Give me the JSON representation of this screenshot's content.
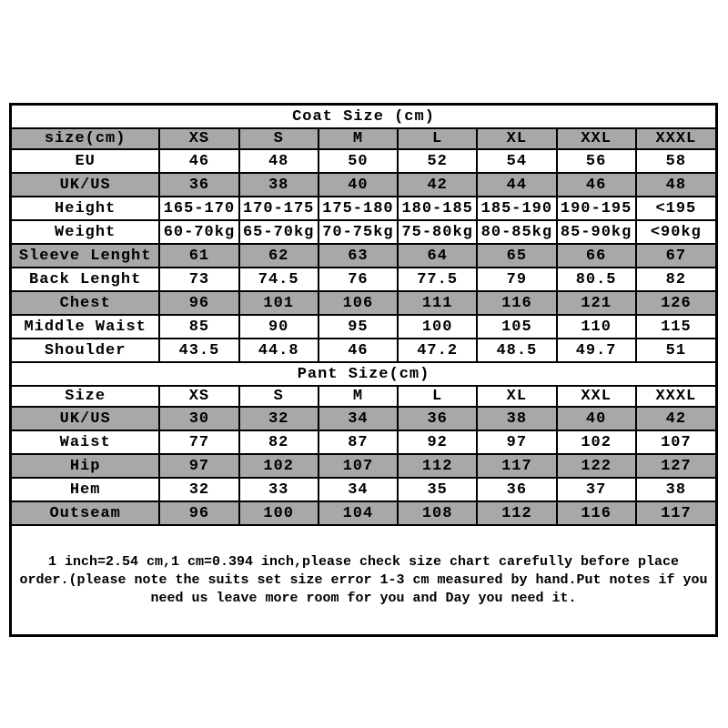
{
  "colors": {
    "shaded_row_bg": "#a8a8a8",
    "border": "#000000",
    "text": "#000000",
    "page_bg": "#ffffff"
  },
  "coat_table": {
    "title": "Coat Size (cm)",
    "header": [
      "size(cm)",
      "XS",
      "S",
      "M",
      "L",
      "XL",
      "XXL",
      "XXXL"
    ],
    "header_shaded": true,
    "rows": [
      {
        "label": "EU",
        "shaded": false,
        "values": [
          "46",
          "48",
          "50",
          "52",
          "54",
          "56",
          "58"
        ]
      },
      {
        "label": "UK/US",
        "shaded": true,
        "values": [
          "36",
          "38",
          "40",
          "42",
          "44",
          "46",
          "48"
        ]
      },
      {
        "label": "Height",
        "shaded": false,
        "values": [
          "165-170",
          "170-175",
          "175-180",
          "180-185",
          "185-190",
          "190-195",
          "<195"
        ]
      },
      {
        "label": "Weight",
        "shaded": false,
        "values": [
          "60-70kg",
          "65-70kg",
          "70-75kg",
          "75-80kg",
          "80-85kg",
          "85-90kg",
          "<90kg"
        ]
      },
      {
        "label": "Sleeve Lenght",
        "shaded": true,
        "values": [
          "61",
          "62",
          "63",
          "64",
          "65",
          "66",
          "67"
        ]
      },
      {
        "label": "Back Lenght",
        "shaded": false,
        "values": [
          "73",
          "74.5",
          "76",
          "77.5",
          "79",
          "80.5",
          "82"
        ]
      },
      {
        "label": "Chest",
        "shaded": true,
        "values": [
          "96",
          "101",
          "106",
          "111",
          "116",
          "121",
          "126"
        ]
      },
      {
        "label": "Middle Waist",
        "shaded": false,
        "values": [
          "85",
          "90",
          "95",
          "100",
          "105",
          "110",
          "115"
        ]
      },
      {
        "label": "Shoulder",
        "shaded": false,
        "values": [
          "43.5",
          "44.8",
          "46",
          "47.2",
          "48.5",
          "49.7",
          "51"
        ]
      }
    ]
  },
  "pant_table": {
    "title": "Pant Size(cm)",
    "header": [
      "Size",
      "XS",
      "S",
      "M",
      "L",
      "XL",
      "XXL",
      "XXXL"
    ],
    "header_shaded": false,
    "rows": [
      {
        "label": "UK/US",
        "shaded": true,
        "values": [
          "30",
          "32",
          "34",
          "36",
          "38",
          "40",
          "42"
        ]
      },
      {
        "label": "Waist",
        "shaded": false,
        "values": [
          "77",
          "82",
          "87",
          "92",
          "97",
          "102",
          "107"
        ]
      },
      {
        "label": "Hip",
        "shaded": true,
        "values": [
          "97",
          "102",
          "107",
          "112",
          "117",
          "122",
          "127"
        ]
      },
      {
        "label": "Hem",
        "shaded": false,
        "values": [
          "32",
          "33",
          "34",
          "35",
          "36",
          "37",
          "38"
        ]
      },
      {
        "label": "Outseam",
        "shaded": true,
        "values": [
          "96",
          "100",
          "104",
          "108",
          "112",
          "116",
          "117"
        ]
      }
    ]
  },
  "note": {
    "lines": [
      "1 inch=2.54 cm,1 cm=0.394 inch,please check size chart carefully before place",
      "order.(please note the suits set size error 1-3 cm measured by hand.Put notes if you",
      "need us leave more room for you and Day you need it."
    ]
  }
}
